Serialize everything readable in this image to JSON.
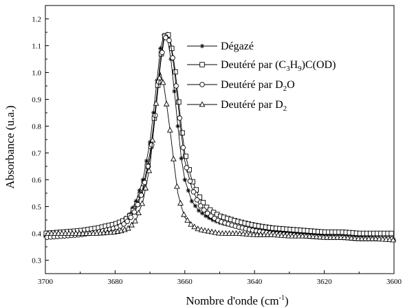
{
  "chart_data": {
    "type": "line",
    "title": "",
    "xlabel": "Nombre d'onde (cm",
    "xlabel_sup": "-1",
    "xlabel_tail": ")",
    "ylabel": "Absorbance (u.a.)",
    "xlim": [
      3700,
      3600
    ],
    "ylim": [
      0.25,
      1.25
    ],
    "x_reversed": true,
    "x_ticks": [
      3700,
      3680,
      3660,
      3640,
      3620,
      3600
    ],
    "x_tick_labels": [
      "3700",
      "3680",
      "3660",
      "3640",
      "3620",
      "3600"
    ],
    "y_ticks": [
      0.3,
      0.4,
      0.5,
      0.6,
      0.7,
      0.8,
      0.9,
      1.0,
      1.1,
      1.2
    ],
    "y_tick_labels": [
      "0.3",
      "0.4",
      "0.5",
      "0.6",
      "0.7",
      "0.8",
      "0.9",
      "1.0",
      "1.1",
      "1.2"
    ],
    "grid": false,
    "legend_position": "top-right",
    "series": [
      {
        "name": "Dégazé",
        "legend_parts": [
          {
            "t": "Dégazé"
          }
        ],
        "marker": "asterisk",
        "x": [
          3700,
          3695,
          3690,
          3685,
          3680,
          3678,
          3676,
          3674,
          3672,
          3670,
          3669,
          3668,
          3667,
          3666,
          3665,
          3664,
          3663,
          3662,
          3661,
          3660,
          3658,
          3656,
          3654,
          3652,
          3650,
          3645,
          3640,
          3635,
          3630,
          3625,
          3620,
          3615,
          3610,
          3605,
          3600
        ],
        "y": [
          0.39,
          0.395,
          0.4,
          0.41,
          0.43,
          0.445,
          0.47,
          0.52,
          0.6,
          0.74,
          0.85,
          0.97,
          1.09,
          1.14,
          1.13,
          1.05,
          0.93,
          0.8,
          0.68,
          0.6,
          0.52,
          0.485,
          0.465,
          0.45,
          0.44,
          0.425,
          0.415,
          0.41,
          0.405,
          0.4,
          0.395,
          0.39,
          0.385,
          0.38,
          0.375
        ]
      },
      {
        "name": "Deutéré par (C3H9)C(OD)",
        "legend_parts": [
          {
            "t": "Deutéré par (C"
          },
          {
            "t": "3",
            "sub": true
          },
          {
            "t": "H"
          },
          {
            "t": "9",
            "sub": true
          },
          {
            "t": ")C(OD)"
          }
        ],
        "marker": "square",
        "x": [
          3700,
          3695,
          3690,
          3685,
          3680,
          3678,
          3676,
          3674,
          3672,
          3670,
          3669,
          3668,
          3667,
          3666,
          3665,
          3664,
          3663,
          3662,
          3661,
          3660,
          3658,
          3656,
          3654,
          3652,
          3650,
          3645,
          3640,
          3635,
          3630,
          3625,
          3620,
          3615,
          3610,
          3605,
          3600
        ],
        "y": [
          0.4,
          0.405,
          0.41,
          0.42,
          0.435,
          0.445,
          0.46,
          0.5,
          0.57,
          0.7,
          0.8,
          0.92,
          1.05,
          1.13,
          1.15,
          1.11,
          1.03,
          0.92,
          0.8,
          0.7,
          0.6,
          0.54,
          0.5,
          0.48,
          0.465,
          0.445,
          0.43,
          0.42,
          0.415,
          0.41,
          0.405,
          0.405,
          0.4,
          0.4,
          0.4
        ]
      },
      {
        "name": "Deutéré par D2O",
        "legend_parts": [
          {
            "t": "Deutéré par D"
          },
          {
            "t": "2",
            "sub": true
          },
          {
            "t": "O"
          }
        ],
        "marker": "circle",
        "x": [
          3700,
          3695,
          3690,
          3685,
          3680,
          3678,
          3676,
          3674,
          3672,
          3670,
          3669,
          3668,
          3667,
          3666,
          3665,
          3664,
          3663,
          3662,
          3661,
          3660,
          3658,
          3656,
          3654,
          3652,
          3650,
          3645,
          3640,
          3635,
          3630,
          3625,
          3620,
          3615,
          3610,
          3605,
          3600
        ],
        "y": [
          0.385,
          0.39,
          0.395,
          0.405,
          0.42,
          0.43,
          0.45,
          0.49,
          0.56,
          0.68,
          0.78,
          0.9,
          1.03,
          1.12,
          1.14,
          1.1,
          1.01,
          0.89,
          0.77,
          0.67,
          0.57,
          0.51,
          0.48,
          0.46,
          0.445,
          0.425,
          0.41,
          0.4,
          0.395,
          0.39,
          0.385,
          0.385,
          0.38,
          0.38,
          0.38
        ]
      },
      {
        "name": "Deutéré par D2",
        "legend_parts": [
          {
            "t": "Deutéré par D"
          },
          {
            "t": "2",
            "sub": true
          }
        ],
        "marker": "triangle",
        "x": [
          3700,
          3695,
          3690,
          3685,
          3680,
          3678,
          3676,
          3674,
          3672,
          3670,
          3669,
          3668,
          3667,
          3666,
          3665,
          3664,
          3663,
          3662,
          3661,
          3660,
          3658,
          3656,
          3654,
          3652,
          3650,
          3645,
          3640,
          3635,
          3630,
          3625,
          3620,
          3615,
          3610,
          3605,
          3600
        ],
        "y": [
          0.4,
          0.4,
          0.4,
          0.4,
          0.405,
          0.41,
          0.42,
          0.45,
          0.52,
          0.65,
          0.78,
          0.92,
          1.0,
          0.95,
          0.86,
          0.76,
          0.65,
          0.55,
          0.5,
          0.46,
          0.43,
          0.415,
          0.41,
          0.405,
          0.4,
          0.4,
          0.395,
          0.395,
          0.39,
          0.39,
          0.385,
          0.385,
          0.38,
          0.38,
          0.375
        ]
      }
    ]
  }
}
